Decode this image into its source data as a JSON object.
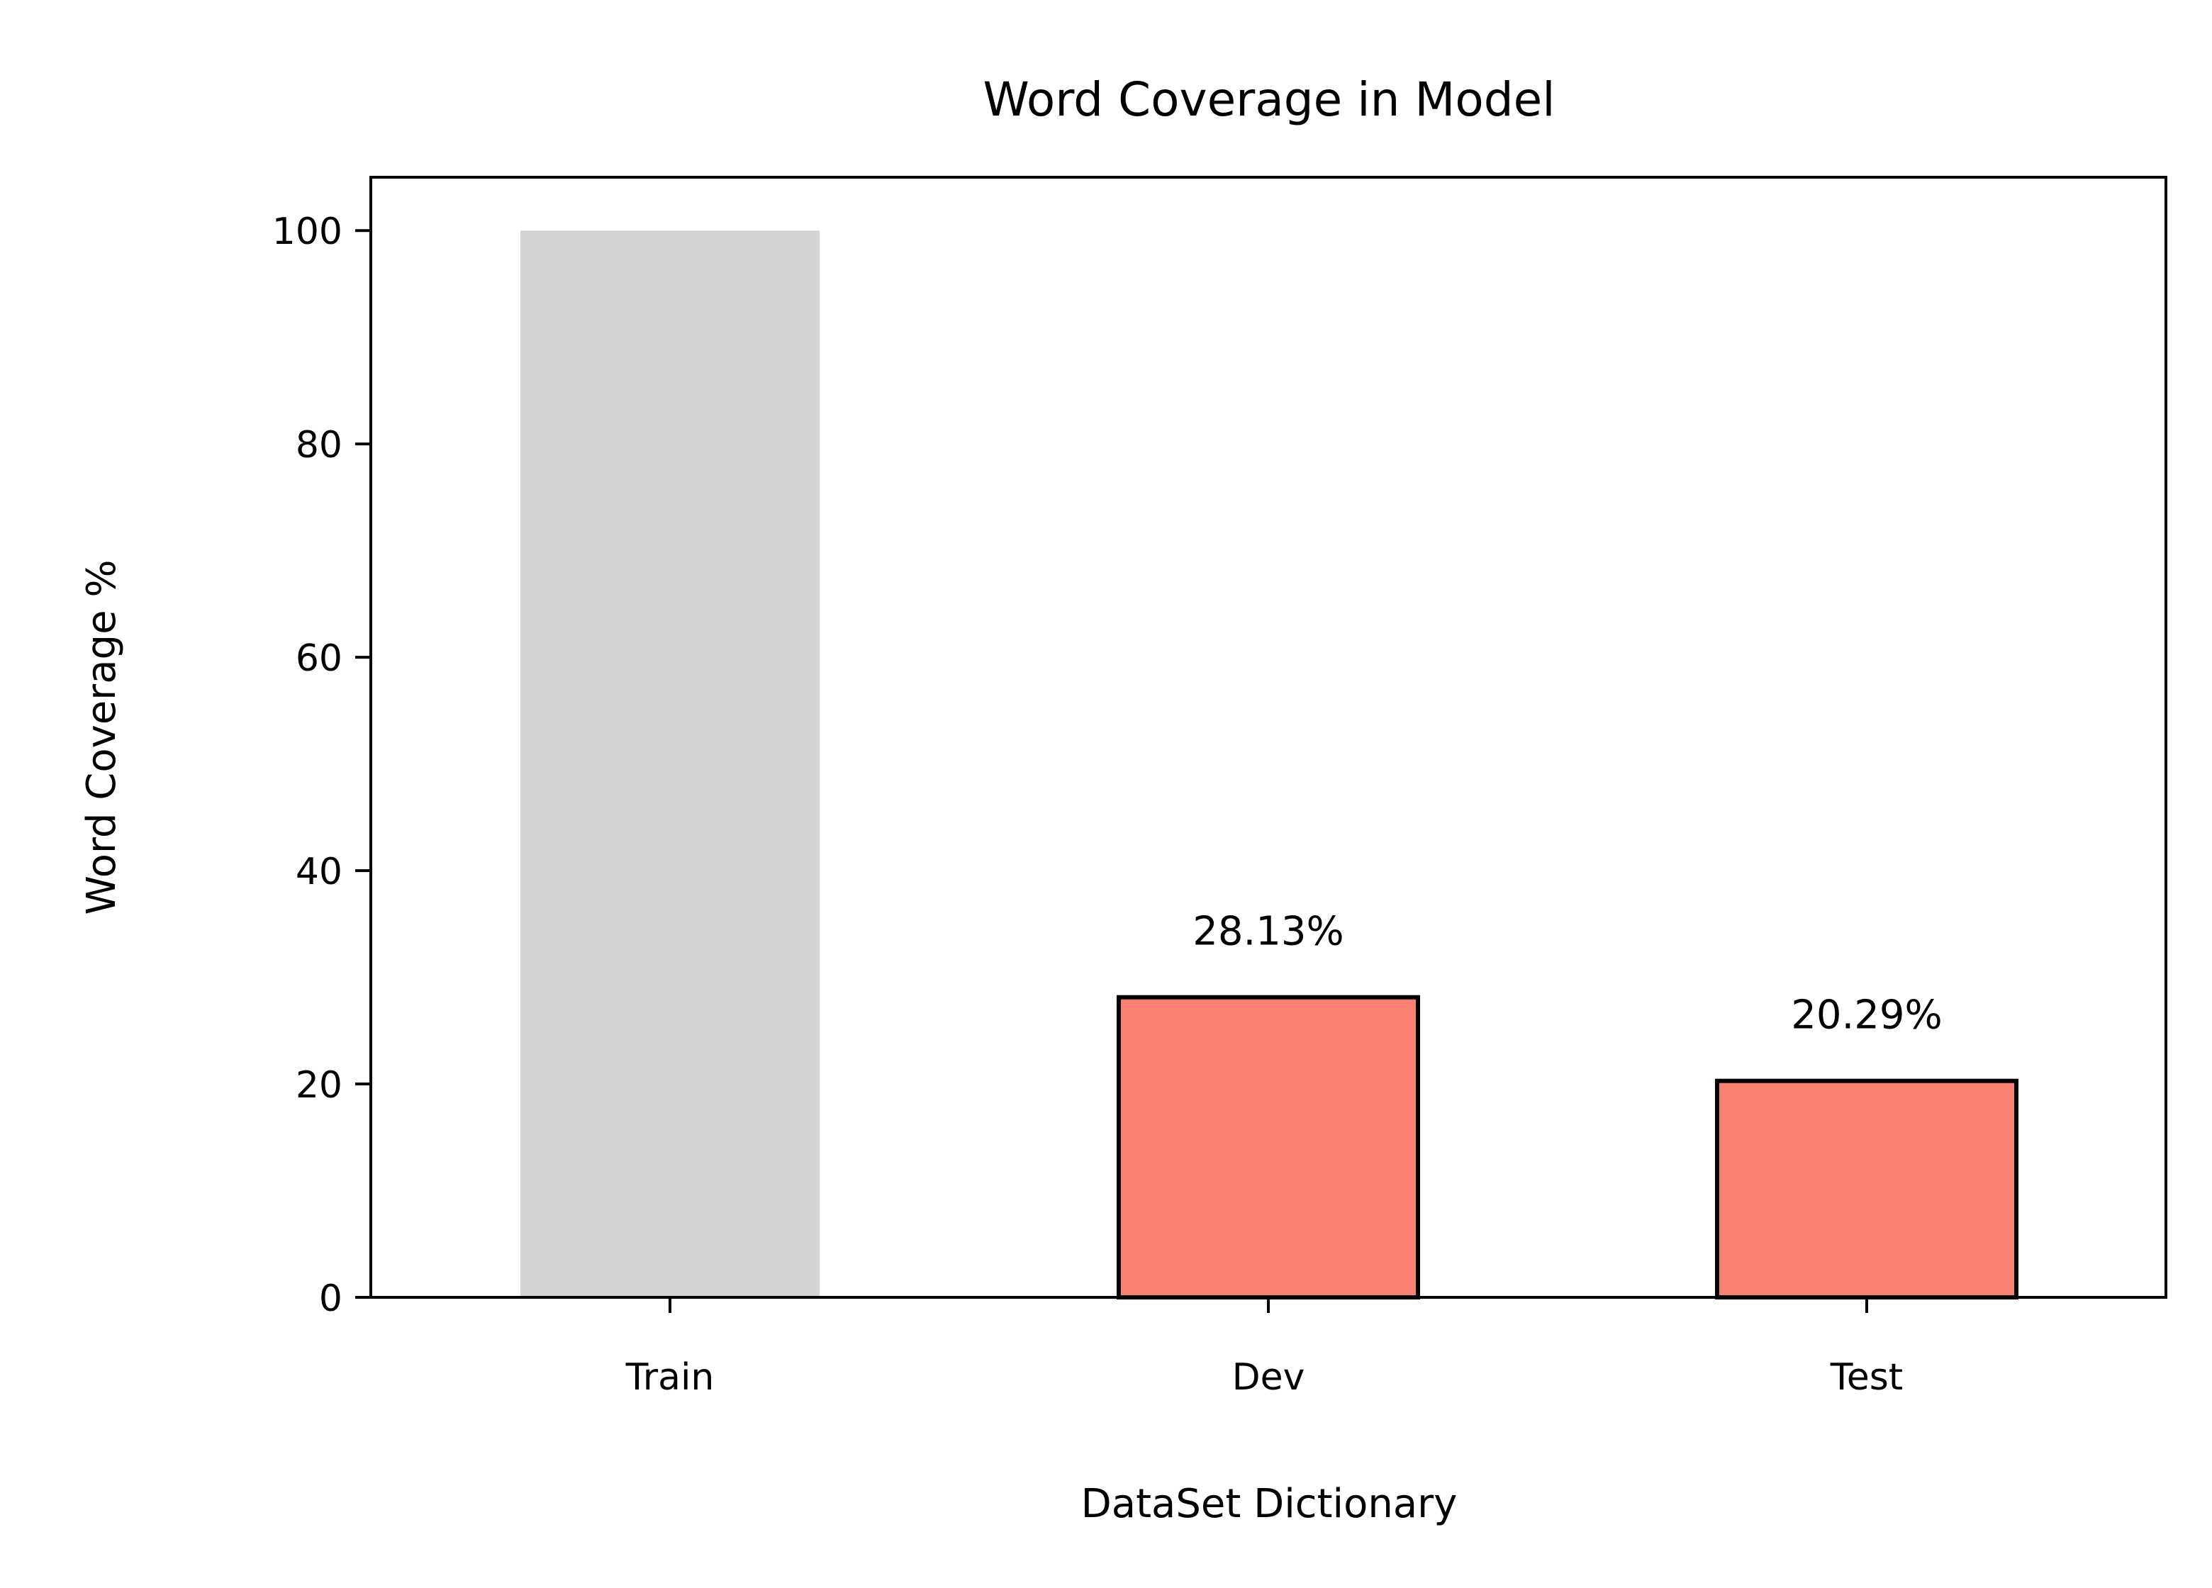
{
  "chart_data": {
    "type": "bar",
    "title": "Word Coverage in Model",
    "xlabel": "DataSet Dictionary",
    "ylabel": "Word Coverage %",
    "categories": [
      "Train",
      "Dev",
      "Test"
    ],
    "values": [
      100,
      28.13,
      20.29
    ],
    "data_labels": [
      "",
      "28.13%",
      "20.29%"
    ],
    "bar_colors": [
      "#d3d3d3",
      "#fa8072",
      "#fa8072"
    ],
    "bar_edges": [
      false,
      true,
      true
    ],
    "edge_color": "#000000",
    "ylim": [
      0,
      105
    ],
    "yticks": [
      0,
      20,
      40,
      60,
      80,
      100
    ],
    "ytick_labels": [
      "0",
      "20",
      "40",
      "60",
      "80",
      "100"
    ],
    "grid": false,
    "legend": "none"
  }
}
